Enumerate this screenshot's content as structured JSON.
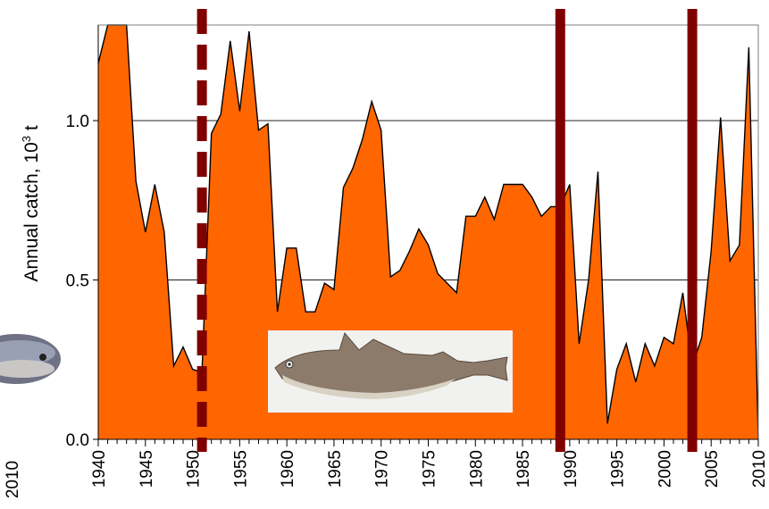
{
  "chart_data": {
    "type": "area",
    "title": "",
    "xlabel": "",
    "ylabel": "Annual catch, 10",
    "ylabel_superscript": "3",
    "ylabel_unit": " t",
    "xlim": [
      1940,
      2010
    ],
    "ylim": [
      0,
      1.3
    ],
    "yticks": [
      "0.0",
      "0.5",
      "1.0"
    ],
    "xticks": [
      "1940",
      "1945",
      "1950",
      "1955",
      "1960",
      "1965",
      "1970",
      "1975",
      "1980",
      "1985",
      "1990",
      "1995",
      "2000",
      "2005",
      "2010"
    ],
    "grid": "horizontal",
    "fill_color": "#ff6600",
    "line_color": "#000000",
    "marker_color": "#800000",
    "x": [
      1940,
      1941,
      1942,
      1943,
      1944,
      1945,
      1946,
      1947,
      1948,
      1949,
      1950,
      1951,
      1952,
      1953,
      1954,
      1955,
      1956,
      1957,
      1958,
      1959,
      1960,
      1961,
      1962,
      1963,
      1964,
      1965,
      1966,
      1967,
      1968,
      1969,
      1970,
      1971,
      1972,
      1973,
      1974,
      1975,
      1976,
      1977,
      1978,
      1979,
      1980,
      1981,
      1982,
      1983,
      1984,
      1985,
      1986,
      1987,
      1988,
      1989,
      1990,
      1991,
      1992,
      1993,
      1994,
      1995,
      1996,
      1997,
      1998,
      1999,
      2000,
      2001,
      2002,
      2003,
      2004,
      2005,
      2006,
      2007,
      2008,
      2009,
      2010
    ],
    "y": [
      1.18,
      1.3,
      1.3,
      1.3,
      0.81,
      0.65,
      0.8,
      0.65,
      0.23,
      0.29,
      0.22,
      0.21,
      0.96,
      1.02,
      1.25,
      1.03,
      1.28,
      0.97,
      0.99,
      0.4,
      0.6,
      0.6,
      0.4,
      0.4,
      0.49,
      0.47,
      0.79,
      0.85,
      0.94,
      1.06,
      0.97,
      0.51,
      0.53,
      0.59,
      0.66,
      0.61,
      0.52,
      0.49,
      0.46,
      0.7,
      0.7,
      0.76,
      0.69,
      0.8,
      0.8,
      0.8,
      0.76,
      0.7,
      0.73,
      0.73,
      0.8,
      0.3,
      0.5,
      0.84,
      0.05,
      0.22,
      0.3,
      0.18,
      0.3,
      0.23,
      0.32,
      0.3,
      0.46,
      0.23,
      0.32,
      0.59,
      1.01,
      0.56,
      0.61,
      1.23,
      0.0
    ],
    "markers": [
      {
        "x": 1951,
        "style": "dashed"
      },
      {
        "x": 1989,
        "style": "solid"
      },
      {
        "x": 2003,
        "style": "solid"
      }
    ],
    "left_partial_label": "2010"
  }
}
